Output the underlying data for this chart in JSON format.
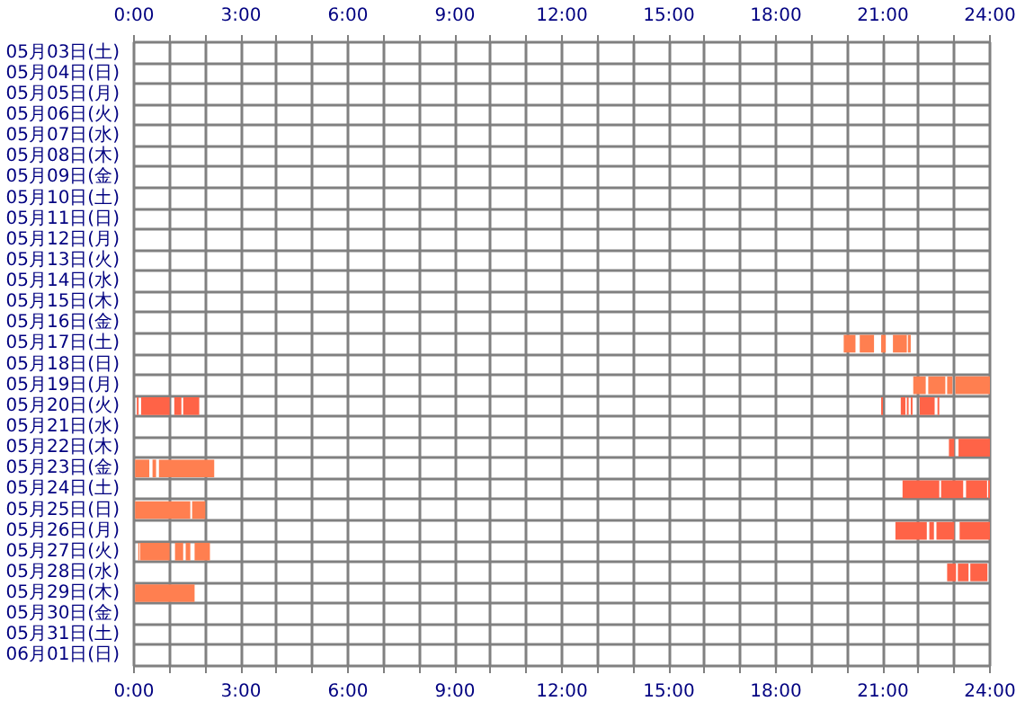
{
  "chart_data": {
    "type": "bar",
    "orientation": "horizontal",
    "grid": true,
    "categories": [
      "05月03日(土)",
      "05月04日(日)",
      "05月05日(月)",
      "05月06日(火)",
      "05月07日(水)",
      "05月08日(木)",
      "05月09日(金)",
      "05月10日(土)",
      "05月11日(日)",
      "05月12日(月)",
      "05月13日(火)",
      "05月14日(水)",
      "05月15日(木)",
      "05月16日(金)",
      "05月17日(土)",
      "05月18日(日)",
      "05月19日(月)",
      "05月20日(火)",
      "05月21日(水)",
      "05月22日(木)",
      "05月23日(金)",
      "05月24日(土)",
      "05月25日(日)",
      "05月26日(月)",
      "05月27日(火)",
      "05月28日(水)",
      "05月29日(木)",
      "05月30日(金)",
      "05月31日(土)",
      "06月01日(日)"
    ],
    "xlim": [
      0,
      24
    ],
    "xticks": [
      {
        "value": 0,
        "label": "0:00"
      },
      {
        "value": 1,
        "label": null
      },
      {
        "value": 2,
        "label": null
      },
      {
        "value": 3,
        "label": "3:00"
      },
      {
        "value": 4,
        "label": null
      },
      {
        "value": 5,
        "label": null
      },
      {
        "value": 6,
        "label": "6:00"
      },
      {
        "value": 7,
        "label": null
      },
      {
        "value": 8,
        "label": null
      },
      {
        "value": 9,
        "label": "9:00"
      },
      {
        "value": 10,
        "label": null
      },
      {
        "value": 11,
        "label": null
      },
      {
        "value": 12,
        "label": "12:00"
      },
      {
        "value": 13,
        "label": null
      },
      {
        "value": 14,
        "label": null
      },
      {
        "value": 15,
        "label": "15:00"
      },
      {
        "value": 16,
        "label": null
      },
      {
        "value": 17,
        "label": null
      },
      {
        "value": 18,
        "label": "18:00"
      },
      {
        "value": 19,
        "label": null
      },
      {
        "value": 20,
        "label": null
      },
      {
        "value": 21,
        "label": "21:00"
      },
      {
        "value": 22,
        "label": null
      },
      {
        "value": 23,
        "label": null
      },
      {
        "value": 24,
        "label": "24:00"
      }
    ],
    "x2lim": [
      0,
      24
    ],
    "x2ticks": [
      {
        "value": 0,
        "label": "0:00"
      },
      {
        "value": 1,
        "label": null
      },
      {
        "value": 2,
        "label": null
      },
      {
        "value": 3,
        "label": "3:00"
      },
      {
        "value": 4,
        "label": null
      },
      {
        "value": 5,
        "label": null
      },
      {
        "value": 6,
        "label": "6:00"
      },
      {
        "value": 7,
        "label": null
      },
      {
        "value": 8,
        "label": null
      },
      {
        "value": 9,
        "label": "9:00"
      },
      {
        "value": 10,
        "label": null
      },
      {
        "value": 11,
        "label": null
      },
      {
        "value": 12,
        "label": "12:00"
      },
      {
        "value": 13,
        "label": null
      },
      {
        "value": 14,
        "label": null
      },
      {
        "value": 15,
        "label": "15:00"
      },
      {
        "value": 16,
        "label": null
      },
      {
        "value": 17,
        "label": null
      },
      {
        "value": 18,
        "label": "18:00"
      },
      {
        "value": 19,
        "label": null
      },
      {
        "value": 20,
        "label": null
      },
      {
        "value": 21,
        "label": "21:00"
      },
      {
        "value": 22,
        "label": null
      },
      {
        "value": 23,
        "label": null
      },
      {
        "value": 24,
        "label": "24:00"
      }
    ],
    "series": [
      {
        "base": [
          null,
          null,
          null,
          null,
          null,
          null,
          null,
          null,
          null,
          null,
          null,
          null,
          null,
          null,
          19.9,
          null,
          21.85,
          0.08,
          null,
          22.85,
          0.03,
          21.55,
          0.03,
          21.35,
          0.12,
          22.8,
          0.03,
          null,
          null,
          null
        ],
        "values": [
          null,
          null,
          null,
          null,
          null,
          null,
          null,
          null,
          null,
          null,
          null,
          null,
          null,
          null,
          0.33,
          null,
          0.35,
          0.05,
          null,
          0.15,
          0.4,
          1.03,
          1.55,
          0.88,
          0.03,
          0.25,
          1.67,
          null,
          null,
          null
        ],
        "colors": [
          null,
          null,
          null,
          null,
          null,
          null,
          null,
          null,
          null,
          null,
          null,
          null,
          null,
          null,
          "#ff7f50",
          null,
          "#ff7f50",
          "#ff6347",
          null,
          "#ff6347",
          "#ff7f50",
          "#ff6347",
          "#ff7f50",
          "#ff6347",
          "#ff7f50",
          "#ff6347",
          "#ff7f50",
          null,
          null,
          null
        ]
      },
      {
        "base": [
          null,
          null,
          null,
          null,
          null,
          null,
          null,
          null,
          null,
          null,
          null,
          null,
          null,
          null,
          20.35,
          null,
          22.27,
          0.2,
          null,
          23.12,
          0.52,
          22.63,
          1.63,
          22.3,
          0.17,
          23.1,
          null,
          null,
          null,
          null
        ],
        "values": [
          null,
          null,
          null,
          null,
          null,
          null,
          null,
          null,
          null,
          null,
          null,
          null,
          null,
          null,
          0.4,
          null,
          0.48,
          0.8,
          null,
          0.88,
          0.1,
          0.62,
          0.37,
          0.13,
          0.83,
          0.3,
          null,
          null,
          null,
          null
        ],
        "colors": [
          null,
          null,
          null,
          null,
          null,
          null,
          null,
          null,
          null,
          null,
          null,
          null,
          null,
          null,
          "#ff7f50",
          null,
          "#ff7f50",
          "#ff6347",
          null,
          "#ff6347",
          "#ff7f50",
          "#ff6347",
          "#ff7f50",
          "#ff6347",
          "#ff7f50",
          "#ff6347",
          null,
          null,
          null,
          null
        ]
      },
      {
        "base": [
          null,
          null,
          null,
          null,
          null,
          null,
          null,
          null,
          null,
          null,
          null,
          null,
          null,
          null,
          20.95,
          null,
          22.8,
          1.13,
          null,
          null,
          0.7,
          23.33,
          null,
          22.5,
          1.15,
          23.45,
          null,
          null,
          null,
          null
        ],
        "values": [
          null,
          null,
          null,
          null,
          null,
          null,
          null,
          null,
          null,
          null,
          null,
          null,
          null,
          null,
          0.13,
          null,
          0.15,
          0.2,
          null,
          null,
          1.55,
          0.59,
          null,
          0.5,
          0.23,
          0.48,
          null,
          null,
          null,
          null
        ],
        "colors": [
          null,
          null,
          null,
          null,
          null,
          null,
          null,
          null,
          null,
          null,
          null,
          null,
          null,
          null,
          "#ff7f50",
          null,
          "#ff7f50",
          "#ff6347",
          null,
          null,
          "#ff7f50",
          "#ff6347",
          null,
          "#ff6347",
          "#ff7f50",
          "#ff6347",
          null,
          null,
          null,
          null
        ]
      },
      {
        "base": [
          null,
          null,
          null,
          null,
          null,
          null,
          null,
          null,
          null,
          null,
          null,
          null,
          null,
          null,
          21.28,
          null,
          23.03,
          1.38,
          null,
          null,
          null,
          23.95,
          null,
          23.15,
          1.45,
          null,
          null,
          null,
          null,
          null
        ],
        "values": [
          null,
          null,
          null,
          null,
          null,
          null,
          null,
          null,
          null,
          null,
          null,
          null,
          null,
          null,
          0.39,
          null,
          0.97,
          0.45,
          null,
          null,
          null,
          0.05,
          null,
          0.85,
          0.13,
          null,
          null,
          null,
          null,
          null
        ],
        "colors": [
          null,
          null,
          null,
          null,
          null,
          null,
          null,
          null,
          null,
          null,
          null,
          null,
          null,
          null,
          "#ff7f50",
          null,
          "#ff7f50",
          "#ff6347",
          null,
          null,
          null,
          "#ff6347",
          null,
          "#ff6347",
          "#ff7f50",
          null,
          null,
          null,
          null,
          null
        ]
      },
      {
        "base": [
          null,
          null,
          null,
          null,
          null,
          null,
          null,
          null,
          null,
          null,
          null,
          null,
          null,
          null,
          21.7,
          null,
          null,
          20.95,
          null,
          null,
          null,
          null,
          null,
          null,
          1.7,
          null,
          null,
          null,
          null,
          null
        ],
        "values": [
          null,
          null,
          null,
          null,
          null,
          null,
          null,
          null,
          null,
          null,
          null,
          null,
          null,
          null,
          0.08,
          null,
          null,
          0.05,
          null,
          null,
          null,
          null,
          null,
          null,
          0.43,
          null,
          null,
          null,
          null,
          null
        ],
        "colors": [
          null,
          null,
          null,
          null,
          null,
          null,
          null,
          null,
          null,
          null,
          null,
          null,
          null,
          null,
          "#ff7f50",
          null,
          null,
          "#ff6347",
          null,
          null,
          null,
          null,
          null,
          null,
          "#ff7f50",
          null,
          null,
          null,
          null,
          null
        ]
      },
      {
        "base": [
          null,
          null,
          null,
          null,
          null,
          null,
          null,
          null,
          null,
          null,
          null,
          null,
          null,
          null,
          null,
          null,
          null,
          21.5,
          null,
          null,
          null,
          null,
          null,
          null,
          null,
          null,
          null,
          null,
          null,
          null
        ],
        "values": [
          null,
          null,
          null,
          null,
          null,
          null,
          null,
          null,
          null,
          null,
          null,
          null,
          null,
          null,
          null,
          null,
          null,
          0.13,
          null,
          null,
          null,
          null,
          null,
          null,
          null,
          null,
          null,
          null,
          null,
          null
        ],
        "colors": [
          null,
          null,
          null,
          null,
          null,
          null,
          null,
          null,
          null,
          null,
          null,
          null,
          null,
          null,
          null,
          null,
          null,
          "#ff6347",
          null,
          null,
          null,
          null,
          null,
          null,
          null,
          null,
          null,
          null,
          null,
          null
        ]
      },
      {
        "base": [
          null,
          null,
          null,
          null,
          null,
          null,
          null,
          null,
          null,
          null,
          null,
          null,
          null,
          null,
          null,
          null,
          null,
          21.67,
          null,
          null,
          null,
          null,
          null,
          null,
          null,
          null,
          null,
          null,
          null,
          null
        ],
        "values": [
          null,
          null,
          null,
          null,
          null,
          null,
          null,
          null,
          null,
          null,
          null,
          null,
          null,
          null,
          null,
          null,
          null,
          0.05,
          null,
          null,
          null,
          null,
          null,
          null,
          null,
          null,
          null,
          null,
          null,
          null
        ],
        "colors": [
          null,
          null,
          null,
          null,
          null,
          null,
          null,
          null,
          null,
          null,
          null,
          null,
          null,
          null,
          null,
          null,
          null,
          "#ff6347",
          null,
          null,
          null,
          null,
          null,
          null,
          null,
          null,
          null,
          null,
          null,
          null
        ]
      },
      {
        "base": [
          null,
          null,
          null,
          null,
          null,
          null,
          null,
          null,
          null,
          null,
          null,
          null,
          null,
          null,
          null,
          null,
          null,
          21.78,
          null,
          null,
          null,
          null,
          null,
          null,
          null,
          null,
          null,
          null,
          null,
          null
        ],
        "values": [
          null,
          null,
          null,
          null,
          null,
          null,
          null,
          null,
          null,
          null,
          null,
          null,
          null,
          null,
          null,
          null,
          null,
          0.05,
          null,
          null,
          null,
          null,
          null,
          null,
          null,
          null,
          null,
          null,
          null,
          null
        ],
        "colors": [
          null,
          null,
          null,
          null,
          null,
          null,
          null,
          null,
          null,
          null,
          null,
          null,
          null,
          null,
          null,
          null,
          null,
          "#ff6347",
          null,
          null,
          null,
          null,
          null,
          null,
          null,
          null,
          null,
          null,
          null,
          null
        ]
      },
      {
        "base": [
          null,
          null,
          null,
          null,
          null,
          null,
          null,
          null,
          null,
          null,
          null,
          null,
          null,
          null,
          null,
          null,
          null,
          22.03,
          null,
          null,
          null,
          null,
          null,
          null,
          null,
          null,
          null,
          null,
          null,
          null
        ],
        "values": [
          null,
          null,
          null,
          null,
          null,
          null,
          null,
          null,
          null,
          null,
          null,
          null,
          null,
          null,
          null,
          null,
          null,
          0.42,
          null,
          null,
          null,
          null,
          null,
          null,
          null,
          null,
          null,
          null,
          null,
          null
        ],
        "colors": [
          null,
          null,
          null,
          null,
          null,
          null,
          null,
          null,
          null,
          null,
          null,
          null,
          null,
          null,
          null,
          null,
          null,
          "#ff6347",
          null,
          null,
          null,
          null,
          null,
          null,
          null,
          null,
          null,
          null,
          null,
          null
        ]
      },
      {
        "base": [
          null,
          null,
          null,
          null,
          null,
          null,
          null,
          null,
          null,
          null,
          null,
          null,
          null,
          null,
          null,
          null,
          null,
          22.53,
          null,
          null,
          null,
          null,
          null,
          null,
          null,
          null,
          null,
          null,
          null,
          null
        ],
        "values": [
          null,
          null,
          null,
          null,
          null,
          null,
          null,
          null,
          null,
          null,
          null,
          null,
          null,
          null,
          null,
          null,
          null,
          0.05,
          null,
          null,
          null,
          null,
          null,
          null,
          null,
          null,
          null,
          null,
          null,
          null
        ],
        "colors": [
          null,
          null,
          null,
          null,
          null,
          null,
          null,
          null,
          null,
          null,
          null,
          null,
          null,
          null,
          null,
          null,
          null,
          "#ff6347",
          null,
          null,
          null,
          null,
          null,
          null,
          null,
          null,
          null,
          null,
          null,
          null
        ]
      }
    ]
  }
}
